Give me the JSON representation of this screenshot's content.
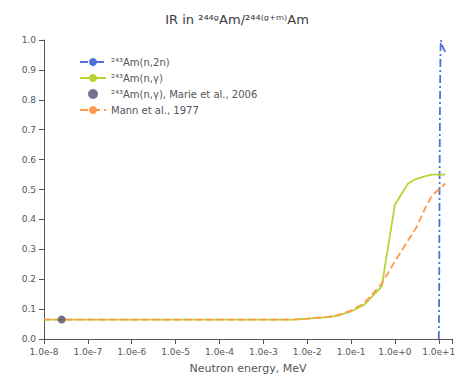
{
  "chart_data": {
    "type": "line",
    "title": "IR in ²⁴⁴ᵍAm/²⁴⁴⁽ᵍ⁺ᵐ⁾Am",
    "xlabel": "Neutron energy, MeV",
    "log": "x",
    "grid": false,
    "legend": "upper left",
    "xlim": [
      1e-08,
      20
    ],
    "xticks": [
      {
        "value": 1e-08,
        "label": "1.0e-8"
      },
      {
        "value": 1e-07,
        "label": "1.0e-7"
      },
      {
        "value": 1e-06,
        "label": "1.0e-6"
      },
      {
        "value": 1e-05,
        "label": "1.0e-5"
      },
      {
        "value": 0.0001,
        "label": "1.0e-4"
      },
      {
        "value": 0.001,
        "label": "1.0e-3"
      },
      {
        "value": 0.01,
        "label": "1.0e-2"
      },
      {
        "value": 0.1,
        "label": "1.0e-1"
      },
      {
        "value": 1,
        "label": "1.0e+0"
      },
      {
        "value": 10,
        "label": "1.0e+1"
      }
    ],
    "ylim": [
      0,
      1
    ],
    "yticks": [
      {
        "value": 0,
        "label": "0.0"
      },
      {
        "value": 0.1,
        "label": "0.1"
      },
      {
        "value": 0.2,
        "label": "0.2"
      },
      {
        "value": 0.3,
        "label": "0.3"
      },
      {
        "value": 0.4,
        "label": "0.4"
      },
      {
        "value": 0.5,
        "label": "0.5"
      },
      {
        "value": 0.6,
        "label": "0.6"
      },
      {
        "value": 0.7,
        "label": "0.7"
      },
      {
        "value": 0.8,
        "label": "0.8"
      },
      {
        "value": 0.9,
        "label": "0.9"
      },
      {
        "value": 1,
        "label": "1.0"
      }
    ],
    "series": [
      {
        "name": "²⁴³Am(n,2n)",
        "type": "line",
        "line_style": "dashdot",
        "x": [
          10,
          10.2,
          10.4,
          10.6,
          10.8,
          10.9,
          11,
          11.2,
          11.5,
          12,
          14
        ],
        "values": [
          0.0,
          0.15,
          0.5,
          0.75,
          0.9,
          0.95,
          0.98,
          1.0,
          1.0,
          0.98,
          0.96
        ]
      },
      {
        "name": "²⁴³Am(n,γ)",
        "type": "line",
        "line_style": "solid",
        "x": [
          1e-08,
          1e-07,
          1e-06,
          1e-05,
          0.0001,
          0.001,
          0.005,
          0.01,
          0.03,
          0.05,
          0.1,
          0.2,
          0.5,
          1,
          2,
          3,
          5,
          7,
          10,
          14
        ],
        "values": [
          0.065,
          0.065,
          0.065,
          0.065,
          0.065,
          0.065,
          0.065,
          0.068,
          0.073,
          0.078,
          0.092,
          0.115,
          0.175,
          0.45,
          0.52,
          0.535,
          0.545,
          0.55,
          0.55,
          0.55
        ]
      },
      {
        "name": "²⁴³Am(n,γ), Marie et al., 2006",
        "type": "scatter",
        "marker": "circle",
        "x": [
          2.53e-08
        ],
        "values": [
          0.065
        ]
      },
      {
        "name": "Mann et al., 1977",
        "type": "line",
        "line_style": "dashed",
        "x": [
          1e-08,
          1e-07,
          1e-06,
          1e-05,
          0.0001,
          0.001,
          0.005,
          0.01,
          0.03,
          0.05,
          0.1,
          0.2,
          0.5,
          1,
          2,
          3,
          5,
          7,
          10,
          14
        ],
        "values": [
          0.065,
          0.065,
          0.065,
          0.065,
          0.065,
          0.065,
          0.065,
          0.068,
          0.074,
          0.08,
          0.095,
          0.12,
          0.185,
          0.26,
          0.33,
          0.37,
          0.44,
          0.48,
          0.5,
          0.52
        ]
      }
    ]
  }
}
